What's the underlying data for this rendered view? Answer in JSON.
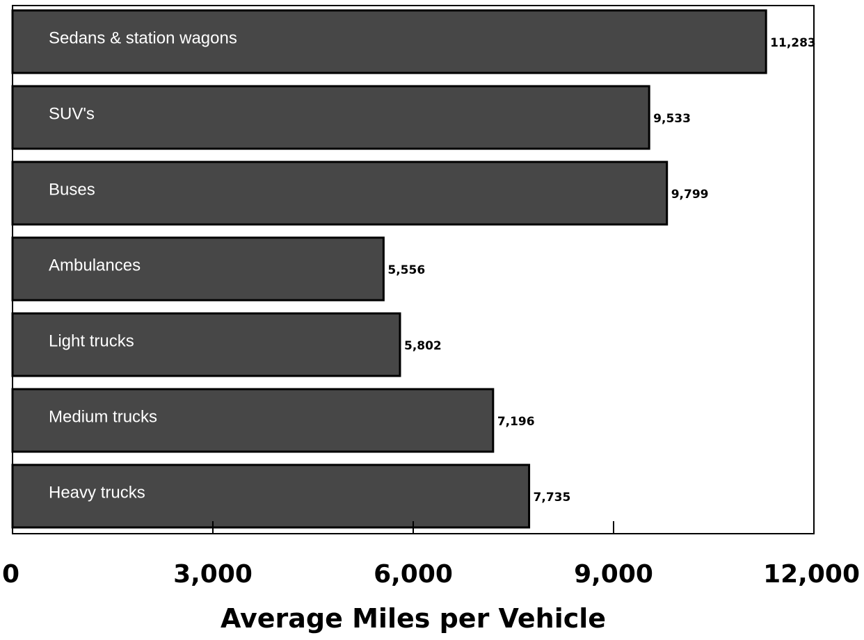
{
  "chart_data": {
    "type": "bar",
    "orientation": "horizontal",
    "categories": [
      "Sedans & station wagons",
      "SUV's",
      "Buses",
      "Ambulances",
      "Light trucks",
      "Medium trucks",
      "Heavy trucks"
    ],
    "values": [
      11283,
      9533,
      9799,
      5556,
      5802,
      7196,
      7735
    ],
    "value_labels": [
      "11,283",
      "9,533",
      "9,799",
      "5,556",
      "5,802",
      "7,196",
      "7,735"
    ],
    "xlabel": "Average Miles per Vehicle",
    "ylabel": "",
    "xlim": [
      0,
      12000
    ],
    "x_ticks": [
      0,
      3000,
      6000,
      9000,
      12000
    ],
    "x_tick_labels": [
      "0",
      "3,000",
      "6,000",
      "9,000",
      "12,000"
    ],
    "grid": false,
    "legend": "none",
    "bar_color": "#474747",
    "bar_edge_color": "#000000",
    "category_label_color": "#ffffff"
  }
}
